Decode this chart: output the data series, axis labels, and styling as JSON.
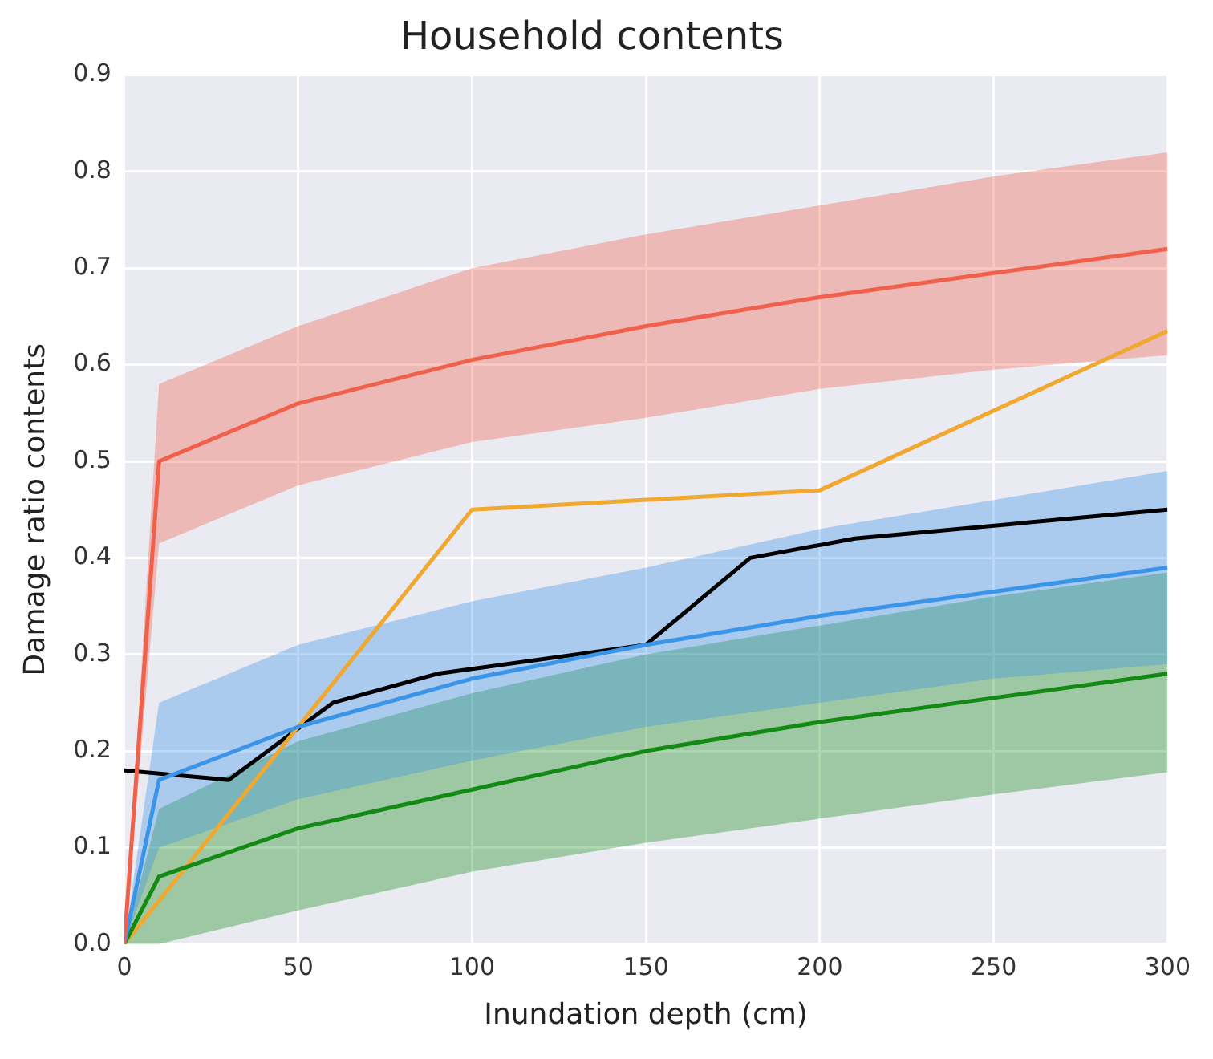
{
  "chart_data": {
    "type": "line",
    "title": "Household contents",
    "xlabel": "Inundation depth (cm)",
    "ylabel": "Damage ratio contents",
    "xlim": [
      0,
      300
    ],
    "xticks": [
      0,
      50,
      100,
      150,
      200,
      250,
      300
    ],
    "ylim": [
      0,
      0.9
    ],
    "yticks": [
      {
        "value": 0,
        "label": "0.0"
      },
      {
        "value": 0.1,
        "label": "0.1"
      },
      {
        "value": 0.2,
        "label": "0.2"
      },
      {
        "value": 0.3,
        "label": "0.3"
      },
      {
        "value": 0.4,
        "label": "0.4"
      },
      {
        "value": 0.5,
        "label": "0.5"
      },
      {
        "value": 0.6,
        "label": "0.6"
      },
      {
        "value": 0.7,
        "label": "0.7"
      },
      {
        "value": 0.8,
        "label": "0.8"
      },
      {
        "value": 0.9,
        "label": "0.9"
      }
    ],
    "grid": true,
    "legend": false,
    "marker": "none",
    "line_style": "solid",
    "series": [
      {
        "color": "#f0604a",
        "x": [
          0,
          10,
          50,
          100,
          150,
          200,
          250,
          300
        ],
        "values": [
          0,
          0.5,
          0.56,
          0.605,
          0.64,
          0.67,
          0.695,
          0.72
        ],
        "lower": [
          0,
          0.415,
          0.475,
          0.52,
          0.545,
          0.575,
          0.595,
          0.61
        ],
        "upper": [
          0,
          0.58,
          0.64,
          0.7,
          0.735,
          0.765,
          0.795,
          0.82
        ]
      },
      {
        "color": "#3a94e8",
        "x": [
          0,
          10,
          50,
          100,
          150,
          200,
          250,
          300
        ],
        "values": [
          0,
          0.17,
          0.225,
          0.275,
          0.31,
          0.34,
          0.365,
          0.39
        ],
        "lower": [
          0,
          0.1,
          0.15,
          0.19,
          0.225,
          0.25,
          0.275,
          0.29
        ],
        "upper": [
          0,
          0.25,
          0.31,
          0.355,
          0.39,
          0.43,
          0.46,
          0.49
        ]
      },
      {
        "color": "#138a13",
        "x": [
          0,
          10,
          50,
          100,
          150,
          200,
          250,
          300
        ],
        "values": [
          0,
          0.07,
          0.12,
          0.16,
          0.2,
          0.23,
          0.255,
          0.28
        ],
        "lower": [
          0,
          0,
          0.035,
          0.075,
          0.105,
          0.13,
          0.155,
          0.178
        ],
        "upper": [
          0,
          0.14,
          0.21,
          0.26,
          0.3,
          0.33,
          0.36,
          0.385
        ]
      },
      {
        "color": "#f0a830",
        "x": [
          0,
          100,
          200,
          300
        ],
        "values": [
          0,
          0.45,
          0.47,
          0.635
        ]
      },
      {
        "color": "#000000",
        "x": [
          0,
          30,
          60,
          90,
          150,
          180,
          210,
          300
        ],
        "values": [
          0.18,
          0.17,
          0.25,
          0.28,
          0.31,
          0.4,
          0.42,
          0.45
        ]
      }
    ]
  }
}
